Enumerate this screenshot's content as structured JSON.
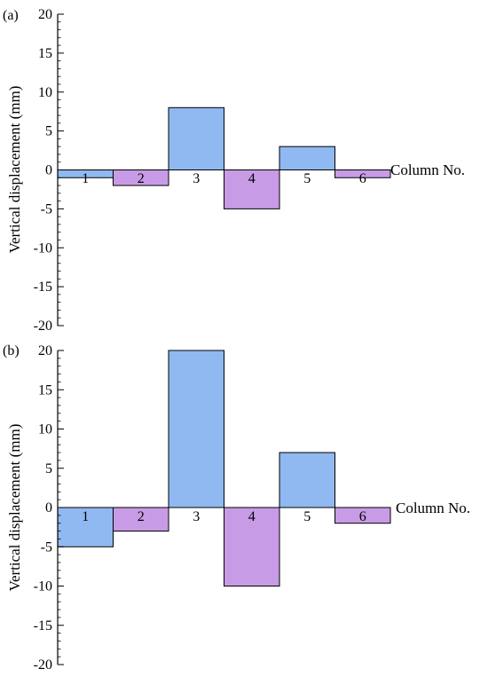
{
  "chart_data": [
    {
      "type": "bar",
      "panel_label": "(a)",
      "categories": [
        "1",
        "2",
        "3",
        "4",
        "5",
        "6"
      ],
      "values": [
        -1,
        -2,
        8,
        -5,
        3,
        -1
      ],
      "ylabel": "Vertical displacement (mm)",
      "xlabel": "Column No.",
      "ylim": [
        -20,
        20
      ],
      "yticks": [
        "20",
        "15",
        "10",
        "5",
        "0",
        "-5",
        "-10",
        "-15",
        "-20"
      ],
      "bar_colors": [
        "#8fb9f0",
        "#c89be6",
        "#8fb9f0",
        "#c89be6",
        "#8fb9f0",
        "#c89be6"
      ],
      "grid": false
    },
    {
      "type": "bar",
      "panel_label": "(b)",
      "categories": [
        "1",
        "2",
        "3",
        "4",
        "5",
        "6"
      ],
      "values": [
        -5,
        -3,
        20,
        -10,
        7,
        -2
      ],
      "ylabel": "Vertical displacement (mm)",
      "xlabel": "Column No.",
      "ylim": [
        -20,
        20
      ],
      "yticks": [
        "20",
        "15",
        "10",
        "5",
        "0",
        "-5",
        "-10",
        "-15",
        "-20"
      ],
      "bar_colors": [
        "#8fb9f0",
        "#c89be6",
        "#8fb9f0",
        "#c89be6",
        "#8fb9f0",
        "#c89be6"
      ],
      "grid": false
    }
  ]
}
